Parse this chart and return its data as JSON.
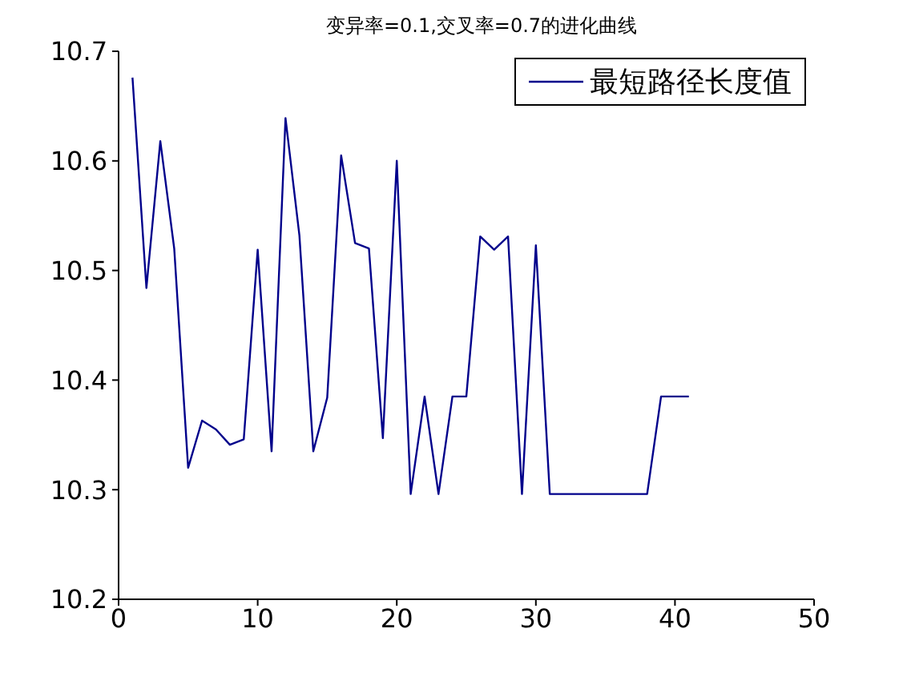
{
  "chart_data": {
    "type": "line",
    "title": "变异率=0.1,交叉率=0.7的进化曲线",
    "x": [
      1,
      2,
      3,
      4,
      5,
      6,
      7,
      8,
      9,
      10,
      11,
      12,
      13,
      14,
      15,
      16,
      17,
      18,
      19,
      20,
      21,
      22,
      23,
      24,
      25,
      26,
      27,
      28,
      29,
      30,
      31,
      32,
      33,
      34,
      35,
      36,
      37,
      38,
      39,
      40,
      41
    ],
    "series": [
      {
        "name": "最短路径长度值",
        "color": "#00008b",
        "values": [
          10.676,
          10.484,
          10.618,
          10.52,
          10.32,
          10.363,
          10.355,
          10.341,
          10.346,
          10.519,
          10.335,
          10.639,
          10.532,
          10.335,
          10.384,
          10.605,
          10.525,
          10.52,
          10.347,
          10.6,
          10.296,
          10.385,
          10.296,
          10.385,
          10.385,
          10.531,
          10.519,
          10.531,
          10.296,
          10.523,
          10.296,
          10.296,
          10.296,
          10.296,
          10.296,
          10.296,
          10.296,
          10.296,
          10.385,
          10.385,
          10.385
        ]
      }
    ],
    "xlim": [
      0,
      50
    ],
    "xticks": [
      0,
      10,
      20,
      30,
      40,
      50
    ],
    "ylim": [
      10.2,
      10.7
    ],
    "yticks": [
      10.2,
      10.3,
      10.4,
      10.5,
      10.6,
      10.7
    ],
    "grid": false,
    "legend": "top right",
    "marker": "none",
    "line_style": "solid"
  }
}
